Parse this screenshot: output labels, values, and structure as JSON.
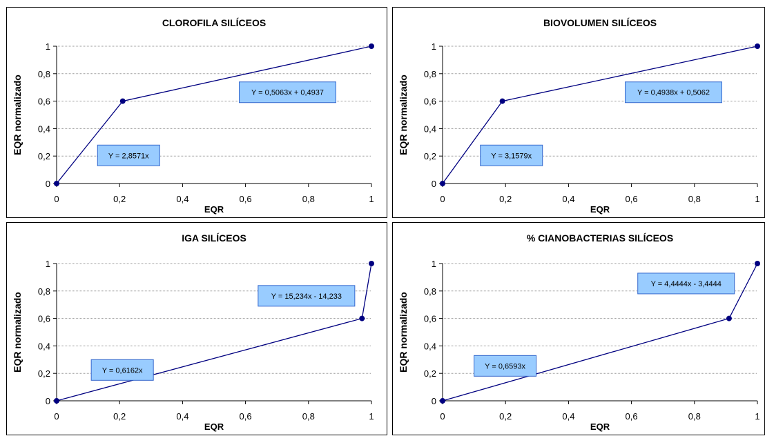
{
  "chart_data": [
    {
      "type": "line",
      "title": "CLOROFILA SILÍCEOS",
      "xlabel": "EQR",
      "ylabel": "EQR normalizado",
      "xlim": [
        0,
        1
      ],
      "ylim": [
        0,
        1
      ],
      "x_ticks": [
        "0",
        "0,2",
        "0,4",
        "0,6",
        "0,8",
        "1"
      ],
      "y_ticks": [
        "0",
        "0,2",
        "0,4",
        "0,6",
        "0,8",
        "1"
      ],
      "grid": "horizontal",
      "colors": {
        "line": "#000080",
        "box_fill": "#99ccff",
        "box_border": "#3366cc"
      },
      "points": [
        {
          "x": 0,
          "y": 0
        },
        {
          "x": 0.21,
          "y": 0.6
        },
        {
          "x": 1,
          "y": 1
        }
      ],
      "annotations": [
        {
          "text": "Y = 2,8571x",
          "x": 0.13,
          "y": 0.28
        },
        {
          "text": "Y = 0,5063x + 0,4937",
          "x": 0.58,
          "y": 0.74
        }
      ]
    },
    {
      "type": "line",
      "title": "BIOVOLUMEN SILÍCEOS",
      "xlabel": "EQR",
      "ylabel": "EQR normalizado",
      "xlim": [
        0,
        1
      ],
      "ylim": [
        0,
        1
      ],
      "x_ticks": [
        "0",
        "0,2",
        "0,4",
        "0,6",
        "0,8",
        "1"
      ],
      "y_ticks": [
        "0",
        "0,2",
        "0,4",
        "0,6",
        "0,8",
        "1"
      ],
      "grid": "horizontal",
      "colors": {
        "line": "#000080",
        "box_fill": "#99ccff",
        "box_border": "#3366cc"
      },
      "points": [
        {
          "x": 0,
          "y": 0
        },
        {
          "x": 0.19,
          "y": 0.6
        },
        {
          "x": 1,
          "y": 1
        }
      ],
      "annotations": [
        {
          "text": "Y = 3,1579x",
          "x": 0.12,
          "y": 0.28
        },
        {
          "text": "Y = 0,4938x + 0,5062",
          "x": 0.58,
          "y": 0.74
        }
      ]
    },
    {
      "type": "line",
      "title": "IGA SILÍCEOS",
      "xlabel": "EQR",
      "ylabel": "EQR normalizado",
      "xlim": [
        0,
        1
      ],
      "ylim": [
        0,
        1
      ],
      "x_ticks": [
        "0",
        "0,2",
        "0,4",
        "0,6",
        "0,8",
        "1"
      ],
      "y_ticks": [
        "0",
        "0,2",
        "0,4",
        "0,6",
        "0,8",
        "1"
      ],
      "grid": "horizontal",
      "colors": {
        "line": "#000080",
        "box_fill": "#99ccff",
        "box_border": "#3366cc"
      },
      "points": [
        {
          "x": 0,
          "y": 0
        },
        {
          "x": 0.97,
          "y": 0.6
        },
        {
          "x": 1,
          "y": 1
        }
      ],
      "annotations": [
        {
          "text": "Y = 0,6162x",
          "x": 0.11,
          "y": 0.3
        },
        {
          "text": "Y = 15,234x - 14,233",
          "x": 0.64,
          "y": 0.84
        }
      ]
    },
    {
      "type": "line",
      "title": "% CIANOBACTERIAS SILÍCEOS",
      "xlabel": "EQR",
      "ylabel": "EQR normalizado",
      "xlim": [
        0,
        1
      ],
      "ylim": [
        0,
        1
      ],
      "x_ticks": [
        "0",
        "0,2",
        "0,4",
        "0,6",
        "0,8",
        "1"
      ],
      "y_ticks": [
        "0",
        "0,2",
        "0,4",
        "0,6",
        "0,8",
        "1"
      ],
      "grid": "horizontal",
      "colors": {
        "line": "#000080",
        "box_fill": "#99ccff",
        "box_border": "#3366cc"
      },
      "points": [
        {
          "x": 0,
          "y": 0
        },
        {
          "x": 0.91,
          "y": 0.6
        },
        {
          "x": 1,
          "y": 1
        }
      ],
      "annotations": [
        {
          "text": "Y = 0,6593x",
          "x": 0.1,
          "y": 0.33
        },
        {
          "text": "Y = 4,4444x - 3,4444",
          "x": 0.62,
          "y": 0.93
        }
      ]
    }
  ]
}
